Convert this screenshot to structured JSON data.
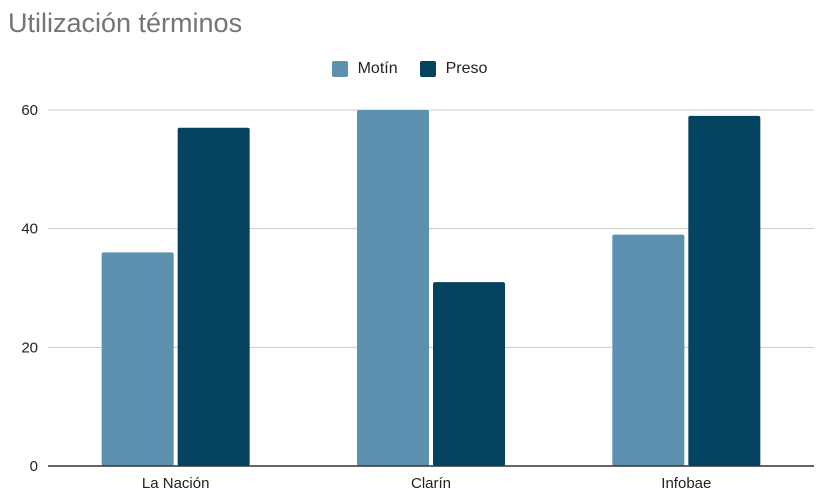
{
  "chart_data": {
    "type": "bar",
    "title": "Utilización términos",
    "categories": [
      "La Nación",
      "Clarín",
      "Infobae"
    ],
    "series": [
      {
        "name": "Motín",
        "values": [
          36,
          60,
          39
        ],
        "color": "#5b91ae"
      },
      {
        "name": "Preso",
        "values": [
          57,
          31,
          59
        ],
        "color": "#03435f"
      }
    ],
    "ylim": [
      0,
      60
    ],
    "yticks": [
      "0",
      "20",
      "40",
      "60"
    ],
    "grid": true,
    "legend_position": "top-center"
  }
}
